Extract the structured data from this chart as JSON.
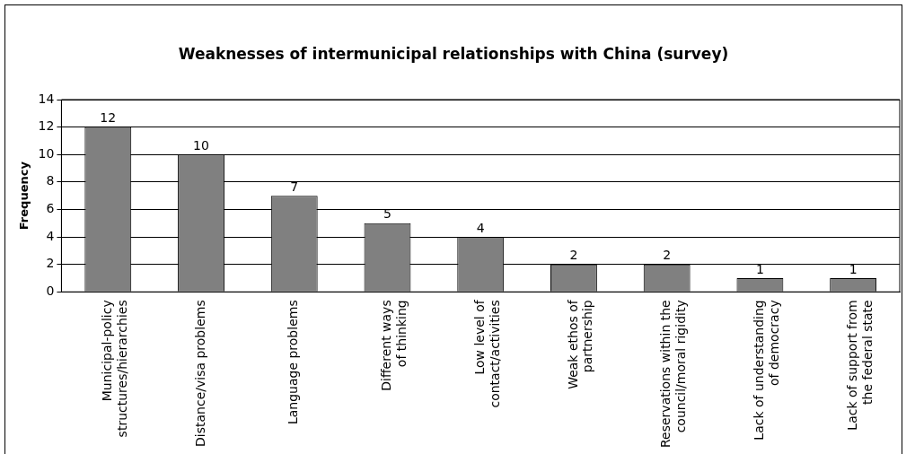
{
  "chart_data": {
    "type": "bar",
    "title": "Weaknesses of intermunicipal relationships with China (survey)",
    "ylabel": "Frequency",
    "categories": [
      "Municipal-policy structures/hierarchies",
      "Distance/visa problems",
      "Language problems",
      "Different ways of thinking",
      "Low level of contact/activities",
      "Weak ethos of partnership",
      "Reservations within the council/moral rigidity",
      "Lack of understanding of democracy",
      "Lack of support from the federal state"
    ],
    "values": [
      12,
      10,
      7,
      5,
      4,
      2,
      2,
      1,
      1
    ],
    "color": "#808080",
    "ylim": [
      0,
      14
    ],
    "yticks": [
      0,
      2,
      4,
      6,
      8,
      10,
      12,
      14
    ],
    "grid": "y",
    "data_labels": true,
    "legend": false
  }
}
